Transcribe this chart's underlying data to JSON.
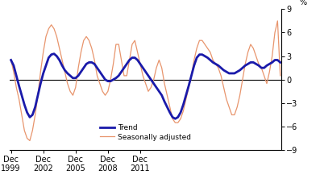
{
  "ylabel_right": "%",
  "ylim": [
    -9,
    9
  ],
  "yticks": [
    -9,
    -6,
    -3,
    0,
    3,
    6,
    9
  ],
  "x_tick_labels": [
    "Dec\n1999",
    "Dec\n2002",
    "Dec\n2005",
    "Dec\n2008",
    "Dec\n2011"
  ],
  "x_tick_positions": [
    0,
    12,
    24,
    36,
    48
  ],
  "trend_color": "#1a1aaa",
  "seasonal_color": "#e8956d",
  "trend_linewidth": 2.0,
  "seasonal_linewidth": 0.9,
  "trend": [
    2.5,
    1.8,
    0.5,
    -0.8,
    -2.0,
    -3.2,
    -4.2,
    -4.8,
    -4.5,
    -3.5,
    -2.0,
    -0.5,
    0.8,
    1.8,
    2.8,
    3.2,
    3.3,
    3.0,
    2.5,
    1.8,
    1.2,
    0.8,
    0.5,
    0.2,
    0.2,
    0.5,
    1.0,
    1.5,
    2.0,
    2.2,
    2.2,
    2.0,
    1.5,
    1.0,
    0.5,
    0.0,
    -0.2,
    -0.2,
    0.0,
    0.2,
    0.5,
    1.0,
    1.5,
    2.0,
    2.5,
    2.8,
    2.8,
    2.5,
    2.0,
    1.5,
    1.0,
    0.5,
    0.0,
    -0.5,
    -1.0,
    -1.5,
    -2.0,
    -2.8,
    -3.5,
    -4.2,
    -4.8,
    -5.0,
    -4.8,
    -4.2,
    -3.2,
    -2.0,
    -0.8,
    0.5,
    1.8,
    2.8,
    3.2,
    3.2,
    3.0,
    2.8,
    2.5,
    2.2,
    2.0,
    1.8,
    1.5,
    1.2,
    1.0,
    0.8,
    0.8,
    0.8,
    1.0,
    1.2,
    1.5,
    1.8,
    2.0,
    2.2,
    2.2,
    2.0,
    1.8,
    1.5,
    1.5,
    1.8,
    2.0,
    2.2,
    2.5,
    2.5,
    2.2
  ],
  "seasonal": [
    2.5,
    1.0,
    -1.0,
    -2.5,
    -4.5,
    -6.5,
    -7.5,
    -7.8,
    -6.5,
    -4.5,
    -2.0,
    1.0,
    3.5,
    5.5,
    6.5,
    7.0,
    6.5,
    5.5,
    4.0,
    2.5,
    1.0,
    -0.5,
    -1.5,
    -2.0,
    -1.0,
    1.5,
    3.5,
    5.0,
    5.5,
    5.0,
    4.0,
    2.5,
    0.5,
    -0.5,
    -1.5,
    -2.0,
    -1.5,
    0.0,
    2.0,
    4.5,
    4.5,
    2.5,
    0.5,
    0.5,
    2.5,
    4.5,
    5.0,
    3.5,
    2.0,
    0.5,
    -0.5,
    -1.5,
    -1.0,
    0.0,
    1.5,
    2.5,
    1.5,
    -0.5,
    -2.0,
    -3.5,
    -5.0,
    -5.5,
    -5.5,
    -5.0,
    -4.0,
    -2.5,
    -1.0,
    0.5,
    2.5,
    4.0,
    5.0,
    5.0,
    4.5,
    4.0,
    3.5,
    2.5,
    2.0,
    1.5,
    0.5,
    -1.0,
    -2.5,
    -3.5,
    -4.5,
    -4.5,
    -3.5,
    -2.0,
    0.0,
    2.0,
    3.5,
    4.5,
    4.0,
    3.0,
    2.0,
    1.5,
    0.5,
    -0.5,
    1.0,
    3.0,
    6.0,
    7.5,
    0.5
  ]
}
